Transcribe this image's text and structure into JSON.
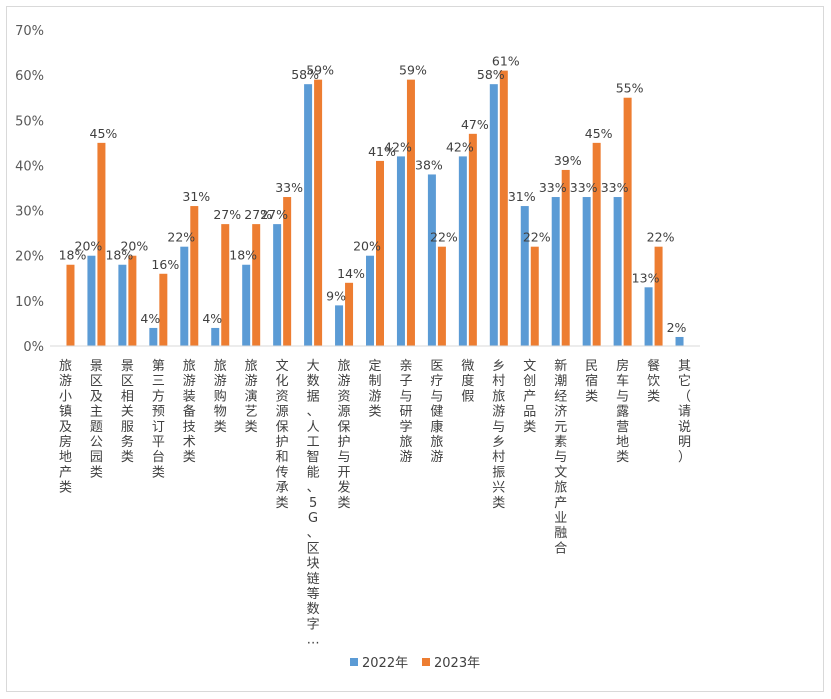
{
  "chart_data": {
    "type": "bar",
    "categories": [
      "旅游小镇及房地产类",
      "景区及主题公园类",
      "景区相关服务类",
      "第三方预订平台类",
      "旅游装备技术类",
      "旅游购物类",
      "旅游演艺类",
      "文化资源保护和传承类",
      "大数据、人工智能、5G、区块链等数字…",
      "旅游资源保护与开发类",
      "定制游类",
      "亲子与研学旅游",
      "医疗与健康旅游",
      "微度假",
      "乡村旅游与乡村振兴类",
      "文创产品类",
      "新潮经济元素与文旅产业融合",
      "民宿类",
      "房车与露营地类",
      "餐饮类",
      "其它（请说明）"
    ],
    "series": [
      {
        "name": "2022年",
        "color": "#5b9bd5",
        "values": [
          null,
          20,
          18,
          4,
          22,
          4,
          18,
          27,
          58,
          9,
          20,
          42,
          38,
          42,
          58,
          31,
          33,
          33,
          33,
          13,
          2
        ],
        "labels": [
          "",
          "20%",
          "18%",
          "4%",
          "22%",
          "4%",
          "18%",
          "27%",
          "58%",
          "9%",
          "20%",
          "42%",
          "38%",
          "42%",
          "58%",
          "31%",
          "33%",
          "33%",
          "33%",
          "13%",
          "2%"
        ]
      },
      {
        "name": "2023年",
        "color": "#ed7d31",
        "values": [
          18,
          45,
          20,
          16,
          31,
          27,
          27,
          33,
          59,
          14,
          41,
          59,
          22,
          47,
          61,
          22,
          39,
          45,
          55,
          22,
          null
        ],
        "labels": [
          "18%",
          "45%",
          "20%",
          "16%",
          "31%",
          "27%",
          "27%",
          "33%",
          "59%",
          "14%",
          "41%",
          "59%",
          "22%",
          "47%",
          "61%",
          "22%",
          "39%",
          "45%",
          "55%",
          "22%",
          ""
        ]
      }
    ],
    "y_ticks": [
      "0%",
      "10%",
      "20%",
      "30%",
      "40%",
      "50%",
      "60%",
      "70%"
    ],
    "ylim": [
      0,
      70
    ],
    "grid": false,
    "legend_position": "bottom"
  }
}
